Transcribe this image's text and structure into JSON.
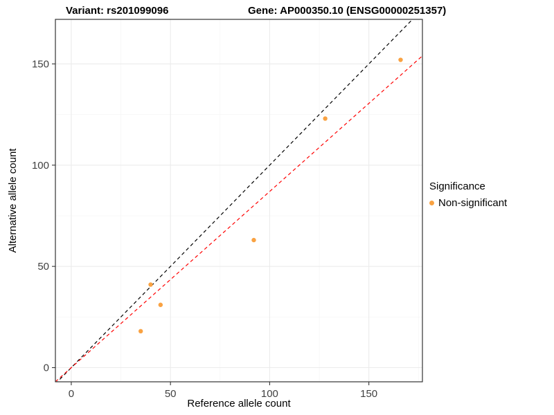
{
  "chart_data": {
    "type": "scatter",
    "title_left": "Variant: rs201099096",
    "title_right": "Gene: AP000350.10 (ENSG00000251357)",
    "xlabel": "Reference allele count",
    "ylabel": "Alternative allele count",
    "xlim": [
      -8,
      177
    ],
    "ylim": [
      -7,
      172
    ],
    "x_ticks": [
      0,
      50,
      100,
      150
    ],
    "y_ticks": [
      0,
      50,
      100,
      150
    ],
    "x_minor": [
      25,
      75,
      125,
      175
    ],
    "y_minor": [
      25,
      75,
      125
    ],
    "points": [
      [
        35,
        18
      ],
      [
        40,
        41
      ],
      [
        45,
        31
      ],
      [
        92,
        63
      ],
      [
        128,
        123
      ],
      [
        166,
        152
      ]
    ],
    "point_color": "#F9A242",
    "point_radius": 3.2,
    "lines": [
      {
        "name": "identity-line",
        "slope": 1,
        "intercept": 0,
        "color": "#000000",
        "dash": "5,4"
      },
      {
        "name": "fit-line",
        "slope": 0.87,
        "intercept": 0,
        "color": "#FF0000",
        "dash": "5,4"
      }
    ],
    "grid": true,
    "legend": {
      "title": "Significance",
      "position": "right",
      "items": [
        {
          "label": "Non-significant"
        }
      ]
    },
    "style": {
      "panel_bg": "#FFFFFF",
      "panel_border": "#333333",
      "grid_major": "#EBEBEB",
      "grid_minor": "#F5F5F5",
      "tick_label": "#404040"
    }
  }
}
